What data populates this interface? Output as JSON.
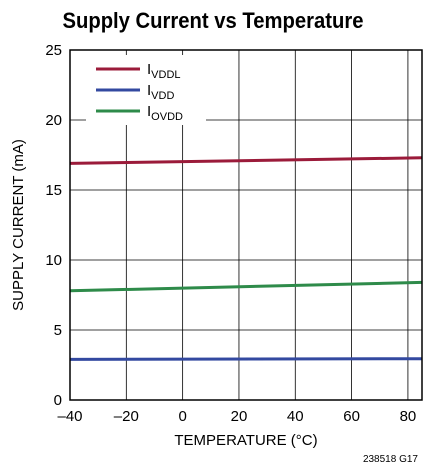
{
  "chart_data": {
    "type": "line",
    "title": "Supply Current vs Temperature",
    "xlabel": "TEMPERATURE (°C)",
    "ylabel": "SUPPLY CURRENT (mA)",
    "xlim": [
      -40,
      85
    ],
    "ylim": [
      0,
      25
    ],
    "x_ticks": [
      -40,
      -20,
      0,
      20,
      40,
      60,
      80
    ],
    "x_tick_labels": [
      "–40",
      "–20",
      "0",
      "20",
      "40",
      "60",
      "80"
    ],
    "y_ticks": [
      0,
      5,
      10,
      15,
      20,
      25
    ],
    "y_tick_labels": [
      "0",
      "5",
      "10",
      "15",
      "20",
      "25"
    ],
    "grid": true,
    "legend_position": "top-left",
    "series": [
      {
        "name_main": "I",
        "name_sub": "VDDL",
        "color": "#9b1b3a",
        "x": [
          -40,
          85
        ],
        "y": [
          16.9,
          17.3
        ]
      },
      {
        "name_main": "I",
        "name_sub": "VDD",
        "color": "#3349a0",
        "x": [
          -40,
          85
        ],
        "y": [
          2.9,
          2.95
        ]
      },
      {
        "name_main": "I",
        "name_sub": "OVDD",
        "color": "#2e8b4a",
        "x": [
          -40,
          85
        ],
        "y": [
          7.8,
          8.4
        ]
      }
    ],
    "figure_code": "238518 G17"
  }
}
